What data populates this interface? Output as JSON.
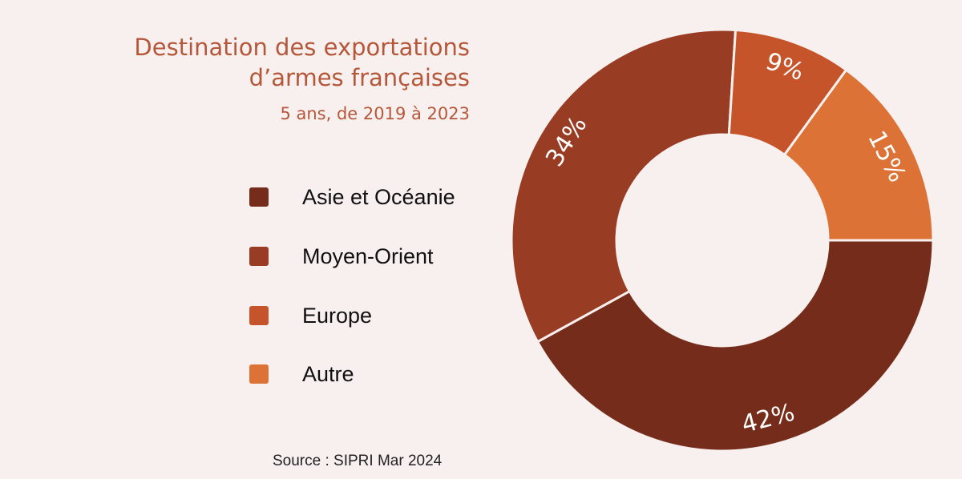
{
  "chart_data": {
    "type": "pie",
    "donut": true,
    "title": "Destination des exportations d’armes françaises",
    "title_lines": [
      "Destination des exportations",
      "d’armes françaises"
    ],
    "subtitle": "5 ans, de 2019 à 2023",
    "source": "Source : SIPRI Mar 2024",
    "legend_position": "left",
    "slices": [
      {
        "name": "Asie et Océanie",
        "value": 42,
        "label": "42%",
        "color": "#762c1a"
      },
      {
        "name": "Moyen-Orient",
        "value": 34,
        "label": "34%",
        "color": "#983c24"
      },
      {
        "name": "Europe",
        "value": 9,
        "label": "9%",
        "color": "#c6542b"
      },
      {
        "name": "Autre",
        "value": 15,
        "label": "15%",
        "color": "#dc7236"
      }
    ]
  },
  "colors": {
    "background": "#f8f0ee",
    "title": "#b5573a"
  }
}
